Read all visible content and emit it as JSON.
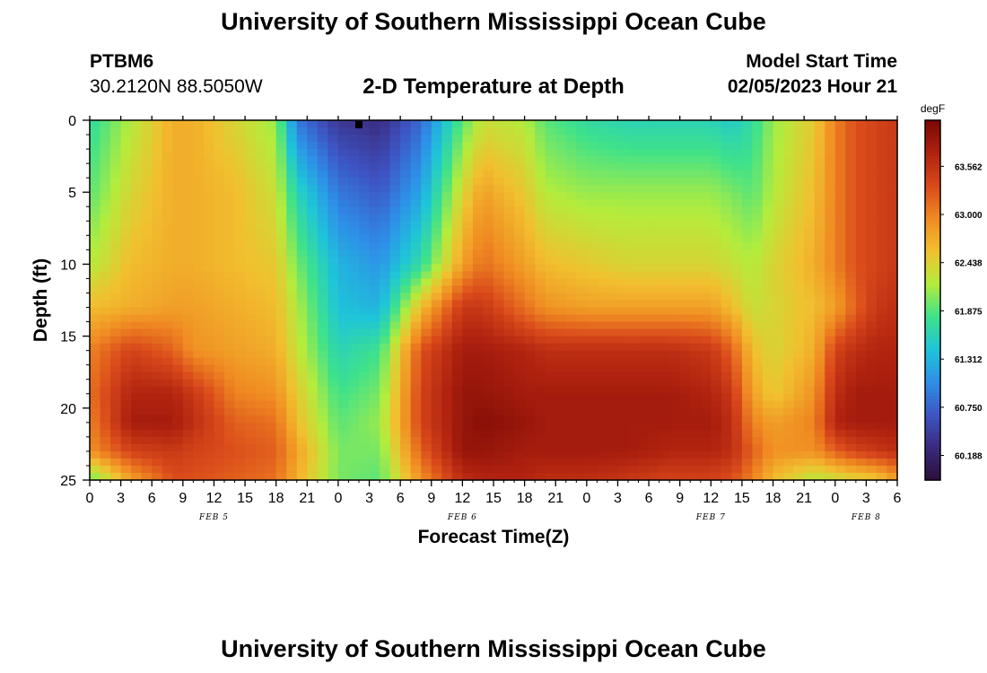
{
  "header": {
    "title": "University of Southern Mississippi Ocean Cube",
    "station_id": "PTBM6",
    "coordinates": "30.2120N  88.5050W",
    "plot_title": "2-D Temperature at Depth",
    "model_start_label": "Model Start Time",
    "model_start_value": "02/05/2023 Hour 21"
  },
  "footer": {
    "title": "University of Southern Mississippi Ocean Cube"
  },
  "chart_data": {
    "type": "heatmap",
    "title": "2-D Temperature at Depth",
    "xlabel": "Forecast Time(Z)",
    "ylabel": "Depth (ft)",
    "x_range_hours": [
      0,
      78
    ],
    "x_ticks": [
      {
        "h": 0,
        "label": "0"
      },
      {
        "h": 3,
        "label": "3"
      },
      {
        "h": 6,
        "label": "6"
      },
      {
        "h": 9,
        "label": "9"
      },
      {
        "h": 12,
        "label": "12"
      },
      {
        "h": 15,
        "label": "15"
      },
      {
        "h": 18,
        "label": "18"
      },
      {
        "h": 21,
        "label": "21"
      },
      {
        "h": 24,
        "label": "0"
      },
      {
        "h": 27,
        "label": "3"
      },
      {
        "h": 30,
        "label": "6"
      },
      {
        "h": 33,
        "label": "9"
      },
      {
        "h": 36,
        "label": "12"
      },
      {
        "h": 39,
        "label": "15"
      },
      {
        "h": 42,
        "label": "18"
      },
      {
        "h": 45,
        "label": "21"
      },
      {
        "h": 48,
        "label": "0"
      },
      {
        "h": 51,
        "label": "3"
      },
      {
        "h": 54,
        "label": "6"
      },
      {
        "h": 57,
        "label": "9"
      },
      {
        "h": 60,
        "label": "12"
      },
      {
        "h": 63,
        "label": "15"
      },
      {
        "h": 66,
        "label": "18"
      },
      {
        "h": 69,
        "label": "21"
      },
      {
        "h": 72,
        "label": "0"
      },
      {
        "h": 75,
        "label": "3"
      },
      {
        "h": 78,
        "label": "6"
      }
    ],
    "date_labels": [
      {
        "h": 12,
        "label": "FEB 5"
      },
      {
        "h": 36,
        "label": "FEB 6"
      },
      {
        "h": 60,
        "label": "FEB 7"
      },
      {
        "h": 75,
        "label": "FEB 8"
      }
    ],
    "y_range": [
      0,
      25
    ],
    "y_ticks": [
      0,
      5,
      10,
      15,
      20,
      25
    ],
    "colorbar": {
      "unit": "degF",
      "min": 59.9,
      "max": 64.1,
      "ticks": [
        "63.562",
        "63.000",
        "62.438",
        "61.875",
        "61.312",
        "60.750",
        "60.188"
      ],
      "stops": [
        "#2b0f3a",
        "#3b2a7e",
        "#3d55c4",
        "#2e8fe8",
        "#1ec5d8",
        "#3fe28a",
        "#b4ec3c",
        "#f1c02f",
        "#f08a22",
        "#d9491b",
        "#b0220f",
        "#7a0805"
      ]
    },
    "value_grid": {
      "x_hours": [
        0,
        4,
        8,
        10,
        14,
        18,
        20,
        24,
        28,
        32,
        36,
        38,
        42,
        44,
        48,
        52,
        56,
        60,
        62,
        64,
        66,
        70,
        72,
        74,
        76,
        78
      ],
      "depths": [
        0,
        5,
        10,
        13,
        16,
        19,
        21,
        23,
        25
      ],
      "values_degF": [
        [
          61.7,
          62.2,
          62.7,
          62.7,
          62.4,
          62.1,
          60.9,
          60.4,
          60.3,
          60.8,
          61.9,
          62.3,
          62.2,
          61.9,
          61.7,
          61.6,
          61.6,
          61.6,
          61.5,
          61.7,
          62.1,
          62.5,
          63.0,
          63.3,
          63.4,
          63.5
        ],
        [
          61.9,
          62.4,
          62.7,
          62.7,
          62.6,
          62.3,
          61.6,
          60.9,
          60.7,
          61.2,
          62.4,
          62.8,
          62.5,
          62.2,
          62.1,
          62.1,
          62.1,
          62.1,
          62.0,
          61.9,
          62.2,
          62.6,
          63.0,
          63.3,
          63.4,
          63.5
        ],
        [
          62.2,
          62.6,
          62.7,
          62.7,
          62.6,
          62.5,
          62.0,
          61.3,
          61.1,
          61.7,
          62.8,
          63.1,
          62.8,
          62.6,
          62.5,
          62.4,
          62.4,
          62.4,
          62.3,
          62.2,
          62.4,
          62.7,
          63.0,
          63.3,
          63.4,
          63.5
        ],
        [
          62.6,
          62.7,
          62.8,
          62.8,
          62.7,
          62.6,
          62.2,
          61.4,
          61.3,
          62.6,
          63.5,
          63.5,
          63.1,
          62.9,
          62.8,
          62.8,
          62.8,
          62.8,
          62.6,
          62.3,
          62.4,
          62.6,
          62.8,
          63.2,
          63.5,
          63.6
        ],
        [
          63.0,
          63.4,
          63.2,
          62.9,
          62.8,
          62.7,
          62.3,
          61.6,
          61.8,
          63.3,
          63.8,
          63.8,
          63.7,
          63.6,
          63.6,
          63.6,
          63.6,
          63.5,
          63.2,
          62.6,
          62.4,
          62.7,
          63.4,
          63.6,
          63.7,
          63.7
        ],
        [
          63.1,
          63.7,
          63.7,
          63.5,
          63.0,
          62.9,
          62.5,
          61.8,
          62.0,
          63.4,
          63.9,
          63.9,
          63.8,
          63.8,
          63.8,
          63.8,
          63.8,
          63.7,
          63.5,
          62.8,
          62.5,
          62.9,
          63.6,
          63.8,
          63.8,
          63.8
        ],
        [
          63.0,
          63.8,
          63.8,
          63.6,
          63.2,
          63.1,
          62.6,
          61.9,
          62.1,
          63.4,
          63.9,
          64.0,
          63.9,
          63.8,
          63.8,
          63.8,
          63.8,
          63.8,
          63.6,
          63.0,
          62.8,
          63.0,
          63.7,
          63.8,
          63.8,
          63.8
        ],
        [
          62.9,
          63.4,
          63.5,
          63.4,
          63.3,
          63.2,
          62.8,
          62.0,
          62.0,
          63.2,
          63.9,
          63.9,
          63.8,
          63.8,
          63.8,
          63.8,
          63.7,
          63.7,
          63.6,
          63.2,
          62.9,
          62.9,
          63.2,
          63.4,
          63.5,
          63.6
        ],
        [
          61.9,
          62.8,
          63.3,
          63.3,
          63.2,
          63.1,
          62.7,
          62.0,
          61.9,
          62.9,
          63.6,
          63.7,
          63.7,
          63.6,
          63.6,
          63.5,
          63.4,
          63.4,
          63.3,
          63.0,
          62.6,
          62.2,
          62.3,
          62.4,
          62.5,
          62.8
        ]
      ]
    }
  }
}
